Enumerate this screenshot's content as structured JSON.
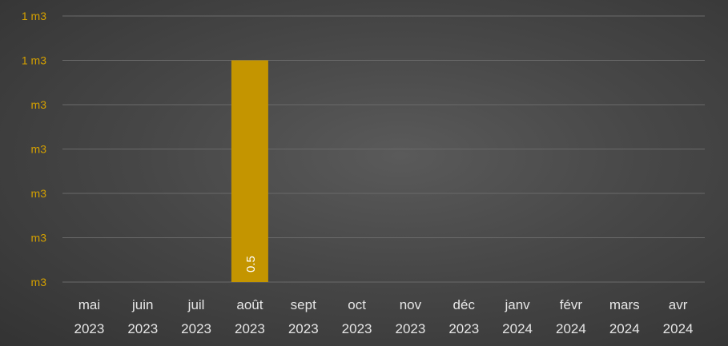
{
  "chart_data": {
    "type": "bar",
    "title": "",
    "xlabel": "",
    "ylabel": "",
    "y_tick_labels": [
      "m3",
      "m3",
      "m3",
      "m3",
      "m3",
      "1 m3",
      "1 m3"
    ],
    "ylim": [
      0,
      0.6
    ],
    "y_tick_values": [
      0,
      0.1,
      0.2,
      0.3,
      0.4,
      0.5,
      0.6
    ],
    "categories": [
      {
        "month": "mai",
        "year": "2023"
      },
      {
        "month": "juin",
        "year": "2023"
      },
      {
        "month": "juil",
        "year": "2023"
      },
      {
        "month": "août",
        "year": "2023"
      },
      {
        "month": "sept",
        "year": "2023"
      },
      {
        "month": "oct",
        "year": "2023"
      },
      {
        "month": "nov",
        "year": "2023"
      },
      {
        "month": "déc",
        "year": "2023"
      },
      {
        "month": "janv",
        "year": "2024"
      },
      {
        "month": "févr",
        "year": "2024"
      },
      {
        "month": "mars",
        "year": "2024"
      },
      {
        "month": "avr",
        "year": "2024"
      }
    ],
    "values": [
      null,
      null,
      null,
      0.5,
      null,
      null,
      null,
      null,
      null,
      null,
      null,
      null
    ],
    "data_labels": [
      "",
      "",
      "",
      "0.5",
      "",
      "",
      "",
      "",
      "",
      "",
      "",
      ""
    ],
    "grid": true,
    "legend": "none",
    "colors": {
      "bar": "#c49500",
      "y_tick_text": "#d4a000",
      "x_tick_text": "#e6e6e6",
      "gridline": "#6a6a6a",
      "data_label": "#ffffff"
    }
  }
}
